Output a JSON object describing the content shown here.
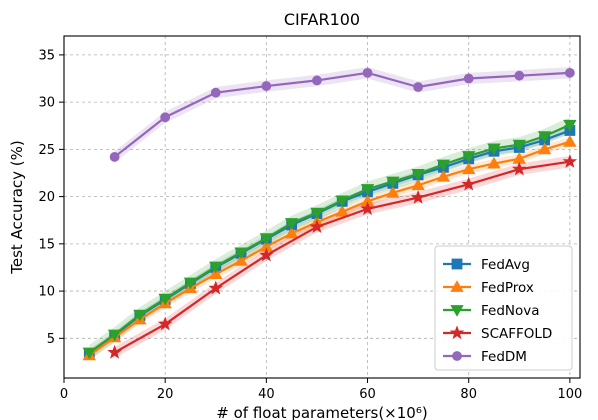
{
  "chart_data": {
    "type": "line",
    "title": "CIFAR100",
    "xlabel": "# of float parameters(×10⁶)",
    "ylabel": "Test Accuracy (%)",
    "xlim": [
      0,
      102
    ],
    "ylim": [
      0.8,
      37
    ],
    "xticks": [
      0,
      20,
      40,
      60,
      80,
      100
    ],
    "yticks": [
      5,
      10,
      15,
      20,
      25,
      30,
      35
    ],
    "grid": true,
    "legend_position": "lower-right",
    "series": [
      {
        "name": "FedAvg",
        "color": "#1f77b4",
        "marker": "square",
        "x": [
          5,
          10,
          15,
          20,
          25,
          30,
          35,
          40,
          45,
          50,
          55,
          60,
          65,
          70,
          75,
          80,
          85,
          90,
          95,
          100
        ],
        "y": [
          3.4,
          5.3,
          7.4,
          9.1,
          10.8,
          12.5,
          14.0,
          15.5,
          17.0,
          18.2,
          19.5,
          20.5,
          21.4,
          22.3,
          23.1,
          24.0,
          24.8,
          25.2,
          26.0,
          27.0
        ],
        "band": 0.4
      },
      {
        "name": "FedProx",
        "color": "#ff7f0e",
        "marker": "triangle-up",
        "x": [
          5,
          10,
          15,
          20,
          25,
          30,
          35,
          40,
          45,
          50,
          55,
          60,
          65,
          70,
          75,
          80,
          85,
          90,
          95,
          100
        ],
        "y": [
          3.2,
          5.1,
          7.0,
          8.7,
          10.3,
          11.8,
          13.2,
          14.7,
          16.1,
          17.3,
          18.4,
          19.5,
          20.4,
          21.2,
          22.1,
          22.9,
          23.5,
          24.0,
          25.0,
          25.8
        ],
        "band": 0.5
      },
      {
        "name": "FedNova",
        "color": "#2ca02c",
        "marker": "triangle-down",
        "x": [
          5,
          10,
          15,
          20,
          25,
          30,
          35,
          40,
          45,
          50,
          55,
          60,
          65,
          70,
          75,
          80,
          85,
          90,
          95,
          100
        ],
        "y": [
          3.5,
          5.4,
          7.5,
          9.2,
          10.9,
          12.6,
          14.1,
          15.6,
          17.2,
          18.3,
          19.6,
          20.8,
          21.6,
          22.4,
          23.4,
          24.3,
          25.1,
          25.5,
          26.4,
          27.6
        ],
        "band": 0.8
      },
      {
        "name": "SCAFFOLD",
        "color": "#d62728",
        "marker": "star",
        "x": [
          10,
          20,
          30,
          40,
          50,
          60,
          70,
          80,
          90,
          100
        ],
        "y": [
          3.5,
          6.5,
          10.3,
          13.8,
          16.8,
          18.7,
          19.9,
          21.3,
          22.9,
          23.7
        ],
        "band": 0.6
      },
      {
        "name": "FedDM",
        "color": "#9467bd",
        "marker": "circle",
        "x": [
          10,
          20,
          30,
          40,
          50,
          60,
          70,
          80,
          90,
          100
        ],
        "y": [
          24.2,
          28.4,
          31.0,
          31.7,
          32.3,
          33.1,
          31.6,
          32.5,
          32.8,
          33.1
        ],
        "band": 0.6
      }
    ]
  }
}
